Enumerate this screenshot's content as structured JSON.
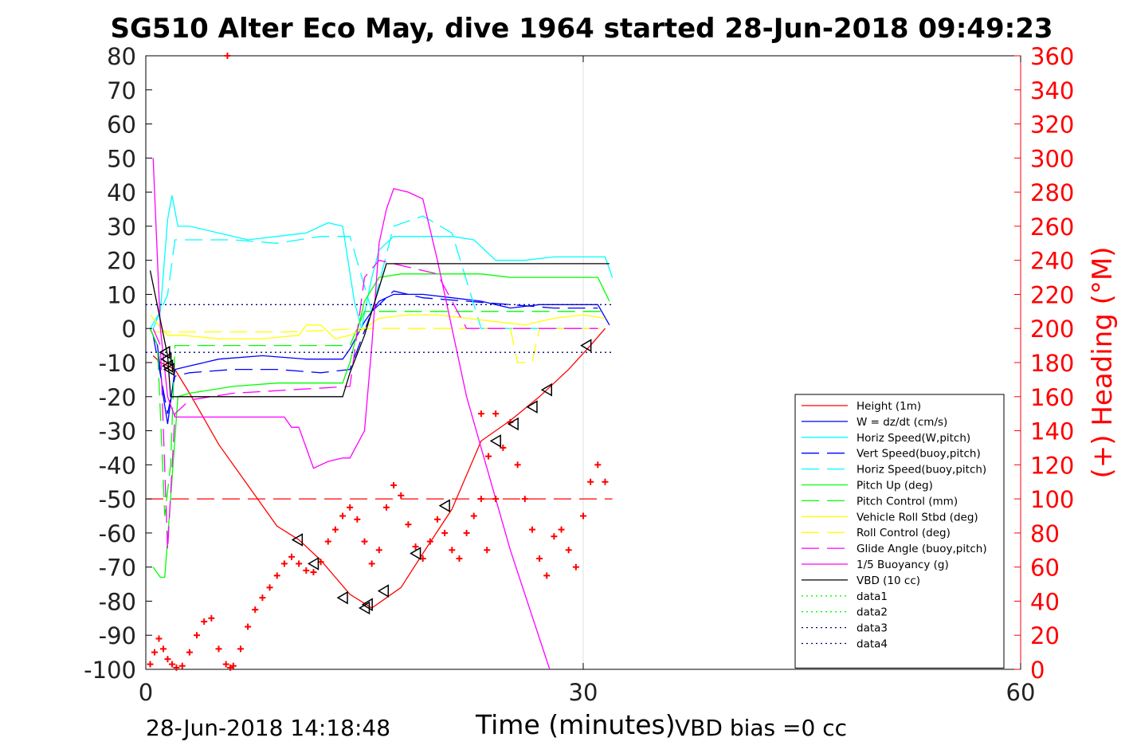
{
  "title": "SG510 Alter Eco May, dive 1964 started 28-Jun-2018 09:49:23",
  "footer": {
    "left": "28-Jun-2018 14:18:48",
    "center": "Time (minutes)",
    "right": "VBD bias =0 cc"
  },
  "chart_data": {
    "type": "line",
    "xlabel": "Time (minutes)",
    "ylabel_left": "",
    "ylabel_right": "(+) Heading (°M)",
    "xlim": [
      0,
      60
    ],
    "ylim": [
      -100,
      80
    ],
    "ylim_right": [
      0,
      360
    ],
    "x_ticks": [
      0,
      30,
      60
    ],
    "y_ticks": [
      80,
      70,
      60,
      50,
      40,
      30,
      20,
      10,
      0,
      -10,
      -20,
      -30,
      -40,
      -50,
      -60,
      -70,
      -80,
      -90,
      -100
    ],
    "y_right_ticks": [
      360,
      340,
      320,
      300,
      280,
      260,
      240,
      220,
      200,
      180,
      160,
      140,
      120,
      100,
      80,
      60,
      40,
      20,
      0
    ],
    "grid": "x-major",
    "legend_position": "lower-right",
    "colors": {
      "red": "#ff0000",
      "blue": "#0000ff",
      "cyan": "#00ffff",
      "green": "#00ff00",
      "yellow": "#ffff00",
      "magenta": "#ff00ff",
      "black": "#000000",
      "navy": "#000080",
      "axis_right": "#ff0000"
    },
    "series": [
      {
        "name": "Height (1m)",
        "color": "#ff0000",
        "style": "solid",
        "x": [
          0.5,
          1.0,
          1.5,
          2.0,
          3.0,
          5.0,
          7.0,
          9.0,
          10.5,
          12.0,
          14.0,
          15.5,
          16.5,
          17.5,
          19.0,
          21.0,
          23.0,
          25.0,
          27.0,
          29.0,
          30.5,
          31.5
        ],
        "y": [
          -8,
          -10,
          -11,
          -12,
          -19,
          -34,
          -46,
          -58,
          -62,
          -68,
          -78,
          -82,
          -79,
          -76,
          -66,
          -53,
          -33,
          -27,
          -20,
          -12,
          -5,
          0
        ]
      },
      {
        "name": "W = dz/dt (cm/s)",
        "color": "#0000ff",
        "style": "solid",
        "x": [
          0.3,
          0.8,
          1.2,
          1.5,
          2.0,
          3.0,
          5.0,
          8.0,
          11.0,
          13.5,
          14.0,
          15.0,
          16.0,
          17.0,
          19.0,
          21.0,
          23.0,
          25.0,
          27.0,
          29.0,
          31.0,
          31.8
        ],
        "y": [
          0,
          -5,
          -20,
          -28,
          -12,
          -11,
          -9,
          -8,
          -9,
          -9,
          -6,
          2,
          8,
          10,
          10,
          9,
          8,
          6,
          7,
          7,
          7,
          1
        ]
      },
      {
        "name": "Horiz Speed(W,pitch)",
        "color": "#00ffff",
        "style": "solid",
        "x": [
          0.3,
          1.0,
          1.5,
          1.8,
          2.2,
          3.0,
          5.0,
          7.0,
          9.0,
          11.0,
          12.5,
          13.5,
          14.3,
          14.8,
          15.5,
          16.0,
          17.0,
          19.0,
          21.0,
          22.5,
          24.0,
          26.0,
          28.0,
          30.0,
          31.5,
          32.0
        ],
        "y": [
          0,
          5,
          32,
          39,
          30,
          30,
          28,
          26,
          27,
          28,
          31,
          30,
          8,
          0,
          15,
          23,
          27,
          27,
          27,
          26,
          20,
          20,
          21,
          21,
          21,
          15
        ]
      },
      {
        "name": "Vert Speed(buoy,pitch)",
        "color": "#0000ff",
        "style": "dashed",
        "x": [
          0.5,
          1.5,
          2.0,
          3.0,
          6.0,
          9.0,
          12.0,
          14.0,
          15.5,
          17.0,
          19.0,
          22.0,
          25.0,
          28.0,
          31.0
        ],
        "y": [
          -2,
          -25,
          -14,
          -13,
          -12,
          -12,
          -13,
          -12,
          5,
          11,
          9,
          8,
          7,
          6,
          6
        ]
      },
      {
        "name": "Horiz Speed(buoy,pitch)",
        "color": "#00ffff",
        "style": "dashed",
        "x": [
          0.5,
          1.5,
          2.0,
          3.0,
          6.0,
          9.0,
          12.0,
          14.0,
          15.5,
          17.0,
          19.0,
          21.0,
          23.0,
          25.0,
          28.0,
          31.0
        ],
        "y": [
          0,
          10,
          26,
          26,
          26,
          25,
          27,
          27,
          5,
          30,
          33,
          28,
          0,
          0,
          0,
          0
        ]
      },
      {
        "name": "Pitch Up (deg)",
        "color": "#00ff00",
        "style": "solid",
        "x": [
          0.5,
          1.0,
          1.3,
          1.7,
          2.2,
          3.0,
          6.0,
          9.0,
          12.0,
          13.5,
          14.0,
          15.0,
          16.0,
          17.5,
          20.0,
          23.0,
          25.0,
          28.0,
          31.0,
          31.8
        ],
        "y": [
          -70,
          -73,
          -73,
          -50,
          -20,
          -19,
          -17,
          -16,
          -16,
          -16,
          -10,
          8,
          15,
          16,
          16,
          16,
          15,
          15,
          15,
          8
        ]
      },
      {
        "name": "Pitch Control (mm)",
        "color": "#00ff00",
        "style": "dashed",
        "x": [
          0.3,
          0.8,
          1.3,
          1.7,
          2.0,
          5.0,
          10.0,
          14.0,
          15.0,
          20.0,
          25.0,
          31.5
        ],
        "y": [
          0,
          -5,
          -55,
          -40,
          -5,
          -5,
          -5,
          -5,
          5,
          5,
          5,
          5
        ]
      },
      {
        "name": "Vehicle Roll Stbd (deg)",
        "color": "#ffff00",
        "style": "solid",
        "x": [
          0.3,
          1.5,
          2.5,
          5.0,
          8.0,
          10.5,
          11.0,
          12.0,
          13.0,
          14.0,
          15.0,
          16.0,
          18.0,
          20.0,
          22.0,
          24.0,
          26.0,
          28.0,
          30.0,
          31.5
        ],
        "y": [
          4,
          -2,
          -2,
          -3,
          -3,
          -2,
          1,
          1,
          -3,
          -2,
          0,
          3,
          4,
          4,
          3,
          2,
          1,
          3,
          4,
          3
        ]
      },
      {
        "name": "Roll Control (deg)",
        "color": "#ffff00",
        "style": "dashed",
        "x": [
          0.5,
          5.0,
          10.0,
          15.0,
          20.0,
          25.0,
          25.5,
          26.5,
          27.0,
          30.0,
          31.5
        ],
        "y": [
          -1,
          -1,
          -1,
          0,
          0,
          0,
          -10,
          -10,
          0,
          0,
          0
        ]
      },
      {
        "name": "Glide Angle (buoy,pitch)",
        "color": "#ff00ff",
        "style": "dashed",
        "x": [
          0.5,
          1.0,
          1.5,
          2.0,
          3.0,
          6.0,
          10.0,
          14.0,
          15.0,
          16.0,
          18.0,
          20.0,
          22.0,
          26.0,
          31.0
        ],
        "y": [
          0,
          -5,
          -65,
          -25,
          -21,
          -19,
          -18,
          -17,
          15,
          20,
          18,
          16,
          0,
          0,
          0
        ]
      },
      {
        "name": "1/5 Buoyancy (g)",
        "color": "#ff00ff",
        "style": "solid",
        "x": [
          0.5,
          1.0,
          1.5,
          2.0,
          5.0,
          9.5,
          10.0,
          10.5,
          11.0,
          11.5,
          12.5,
          13.5,
          14.0,
          15.0,
          15.5,
          16.0,
          16.5,
          17.0,
          18.0,
          18.5,
          19.0,
          20.0,
          22.0,
          25.0,
          27.7
        ],
        "y": [
          50,
          0,
          -20,
          -26,
          -26,
          -26,
          -29,
          -29,
          -35,
          -41,
          -39,
          -38,
          -38,
          -30,
          -5,
          25,
          35,
          41,
          40,
          39,
          38,
          20,
          -20,
          -65,
          -100
        ]
      },
      {
        "name": "VBD (10 cc)",
        "color": "#000000",
        "style": "solid",
        "x": [
          0.3,
          1.5,
          1.7,
          3.0,
          6.0,
          10.0,
          13.5,
          14.0,
          15.0,
          16.5,
          17.5,
          20.0,
          25.0,
          30.0,
          31.8
        ],
        "y": [
          17,
          -8,
          -20,
          -20,
          -20,
          -20,
          -20,
          -13,
          -2,
          19,
          19,
          19,
          19,
          19,
          19
        ]
      },
      {
        "name": "data1",
        "color": "#00ff00",
        "style": "dotted",
        "x": [],
        "y": []
      },
      {
        "name": "data2",
        "color": "#00ff00",
        "style": "dotted",
        "x": [],
        "y": []
      },
      {
        "name": "data3",
        "color": "#000080",
        "style": "dotted",
        "x": [
          0,
          32
        ],
        "y": [
          7,
          7
        ]
      },
      {
        "name": "data4",
        "color": "#000080",
        "style": "dotted",
        "x": [
          0,
          32
        ],
        "y": [
          -7,
          -7
        ]
      }
    ],
    "reference_lines": [
      {
        "y": -50,
        "color": "#ff0000",
        "style": "dashed",
        "x": [
          0,
          32
        ]
      }
    ],
    "triangle_markers": {
      "x": [
        1.3,
        1.4,
        1.5,
        1.6,
        10.4,
        11.5,
        13.5,
        15.0,
        15.2,
        16.3,
        18.5,
        20.5,
        24.0,
        25.2,
        26.5,
        27.5,
        30.2
      ],
      "y": [
        -7,
        -9,
        -11,
        -12,
        -62,
        -69,
        -79,
        -82,
        -81,
        -77,
        -66,
        -52,
        -33,
        -28,
        -23,
        -18,
        -5
      ]
    },
    "heading_markers": {
      "axis": "right",
      "x": [
        0.3,
        0.6,
        0.9,
        1.2,
        1.5,
        1.8,
        2.1,
        2.5,
        3.0,
        3.5,
        4.0,
        4.5,
        5.0,
        5.5,
        5.8,
        6.0,
        6.5,
        7.0,
        7.5,
        8.0,
        8.5,
        9.0,
        9.5,
        10.0,
        10.5,
        11.0,
        11.5,
        12.0,
        12.5,
        13.0,
        13.5,
        14.0,
        14.5,
        15.0,
        15.5,
        16.0,
        16.5,
        17.0,
        17.5,
        18.0,
        18.5,
        19.0,
        19.5,
        20.0,
        20.5,
        21.0,
        21.5,
        22.0,
        22.5,
        23.0,
        23.5,
        24.0,
        24.5,
        25.0,
        25.5,
        26.0,
        26.5,
        27.0,
        27.5,
        28.0,
        28.5,
        29.0,
        29.5,
        30.0,
        30.5,
        31.0,
        31.5
      ],
      "y": [
        3,
        10,
        18,
        12,
        6,
        3,
        1,
        2,
        10,
        20,
        28,
        30,
        12,
        3,
        1,
        2,
        12,
        25,
        35,
        42,
        48,
        55,
        62,
        66,
        62,
        58,
        57,
        63,
        75,
        82,
        90,
        95,
        88,
        75,
        62,
        70,
        95,
        108,
        102,
        85,
        72,
        65,
        75,
        88,
        80,
        70,
        65,
        80,
        90,
        150,
        125,
        100,
        130,
        145,
        120,
        100,
        82,
        65,
        55,
        78,
        82,
        70,
        60,
        90,
        110,
        120,
        110
      ]
    },
    "outlier_markers": {
      "axis": "right",
      "x": [
        5.6,
        23.0,
        23.4,
        24.0
      ],
      "y": [
        360,
        100,
        70,
        150
      ]
    }
  }
}
